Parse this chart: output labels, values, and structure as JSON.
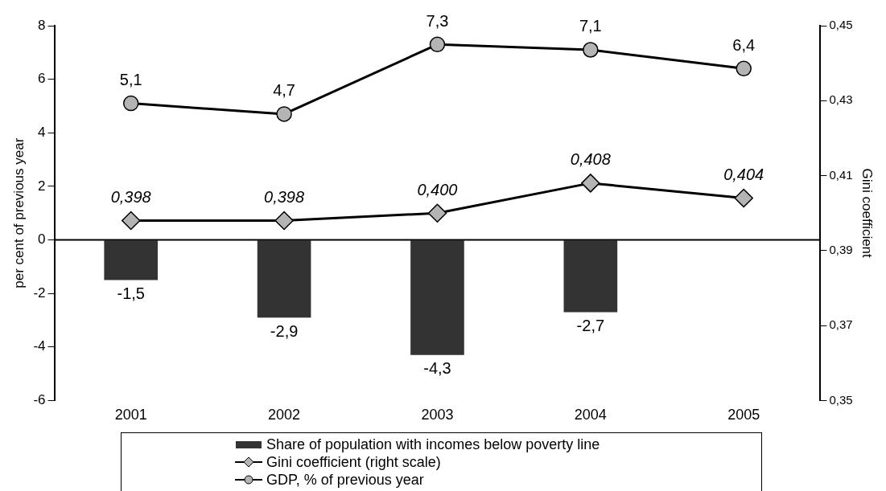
{
  "chart_data": {
    "type": "bar",
    "categories": [
      "2001",
      "2002",
      "2003",
      "2004",
      "2005"
    ],
    "ylabel": "per cent of previous year",
    "y2label": "Gini coefficient",
    "ylim": [
      -6,
      8
    ],
    "yticks": [
      -6,
      -4,
      -2,
      0,
      2,
      4,
      6,
      8
    ],
    "y2lim": [
      0.35,
      0.45
    ],
    "y2ticks": [
      {
        "value": 0.35,
        "label": "0,35"
      },
      {
        "value": 0.37,
        "label": "0,37"
      },
      {
        "value": 0.39,
        "label": "0,39"
      },
      {
        "value": 0.41,
        "label": "0,41"
      },
      {
        "value": 0.43,
        "label": "0,43"
      },
      {
        "value": 0.45,
        "label": "0,45"
      }
    ],
    "series": [
      {
        "name": "Share of population with incomes below poverty line",
        "color": "#333333",
        "values": [
          -1.5,
          -2.9,
          -4.3,
          -2.7,
          null
        ],
        "value_labels": [
          "-1,5",
          "-2,9",
          "-4,3",
          "-2,7",
          null
        ]
      },
      {
        "name": "Gini coefficient (right scale)",
        "type": "line",
        "axis": "y2",
        "color": "#000000",
        "marker": "diamond",
        "values": [
          0.398,
          0.398,
          0.4,
          0.408,
          0.404
        ],
        "value_labels": [
          "0,398",
          "0,398",
          "0,400",
          "0,408",
          "0,404"
        ]
      },
      {
        "name": "GDP, % of previous year",
        "type": "line",
        "color": "#000000",
        "marker": "circle",
        "values": [
          5.1,
          4.7,
          7.3,
          7.1,
          6.4
        ],
        "value_labels": [
          "5,1",
          "4,7",
          "7,3",
          "7,1",
          "6,4"
        ]
      }
    ],
    "ref_lines": [
      {
        "axis": "y",
        "value": 0,
        "color": "#000000"
      }
    ],
    "legend": "bottom",
    "grid": false
  }
}
